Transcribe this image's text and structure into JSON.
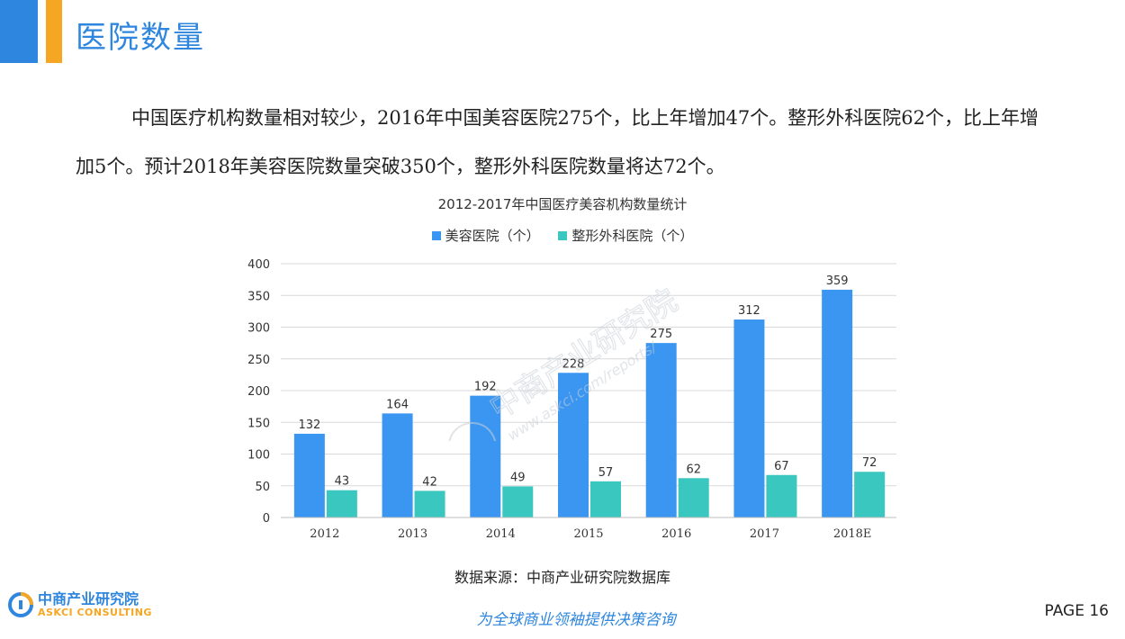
{
  "header": {
    "title": "医院数量"
  },
  "intro": {
    "text": "中国医疗机构数量相对较少，2016年中国美容医院275个，比上年增加47个。整形外科医院62个，比上年增加5个。预计2018年美容医院数量突破350个，整形外科医院数量将达72个。"
  },
  "chart_data": {
    "type": "bar",
    "title": "2012-2017年中国医疗美容机构数量统计",
    "categories": [
      "2012",
      "2013",
      "2014",
      "2015",
      "2016",
      "2017",
      "2018E"
    ],
    "series": [
      {
        "name": "美容医院（个）",
        "color": "#3a96f0",
        "values": [
          132,
          164,
          192,
          228,
          275,
          312,
          359
        ]
      },
      {
        "name": "整形外科医院（个）",
        "color": "#3ac7c0",
        "values": [
          43,
          42,
          49,
          57,
          62,
          67,
          72
        ]
      }
    ],
    "yticks": [
      "0",
      "50",
      "100",
      "150",
      "200",
      "250",
      "300",
      "350",
      "400"
    ],
    "ylim": [
      0,
      400
    ],
    "grid": true,
    "legend": "top-center"
  },
  "source": "数据来源：中商产业研究院数据库",
  "footer": {
    "logo_cn": "中商产业研究院",
    "logo_en": "ASKCI CONSULTING",
    "slogan": "为全球商业领袖提供决策咨询",
    "page": "PAGE  16"
  },
  "watermark": {
    "line1": "中商产业研究院",
    "line2": "www.askci.com/reports/"
  }
}
